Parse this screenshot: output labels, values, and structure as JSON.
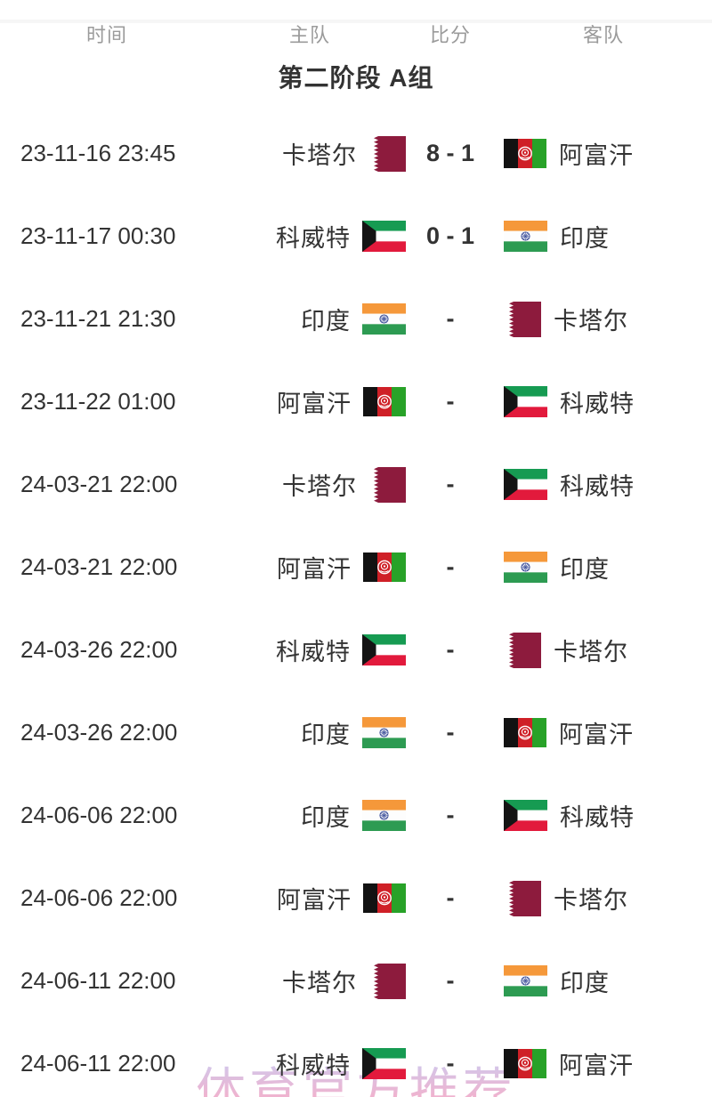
{
  "table": {
    "headers": {
      "time": "时间",
      "home": "主队",
      "score": "比分",
      "away": "客队"
    },
    "group_title": "第二阶段 A组",
    "matches": [
      {
        "time": "23-11-16 23:45",
        "home": {
          "name": "卡塔尔",
          "flag": "qatar"
        },
        "score": "8 - 1",
        "away": {
          "name": "阿富汗",
          "flag": "afghanistan"
        }
      },
      {
        "time": "23-11-17 00:30",
        "home": {
          "name": "科威特",
          "flag": "kuwait"
        },
        "score": "0 - 1",
        "away": {
          "name": "印度",
          "flag": "india"
        }
      },
      {
        "time": "23-11-21 21:30",
        "home": {
          "name": "印度",
          "flag": "india"
        },
        "score": "-",
        "away": {
          "name": "卡塔尔",
          "flag": "qatar"
        }
      },
      {
        "time": "23-11-22 01:00",
        "home": {
          "name": "阿富汗",
          "flag": "afghanistan"
        },
        "score": "-",
        "away": {
          "name": "科威特",
          "flag": "kuwait"
        }
      },
      {
        "time": "24-03-21 22:00",
        "home": {
          "name": "卡塔尔",
          "flag": "qatar"
        },
        "score": "-",
        "away": {
          "name": "科威特",
          "flag": "kuwait"
        }
      },
      {
        "time": "24-03-21 22:00",
        "home": {
          "name": "阿富汗",
          "flag": "afghanistan"
        },
        "score": "-",
        "away": {
          "name": "印度",
          "flag": "india"
        }
      },
      {
        "time": "24-03-26 22:00",
        "home": {
          "name": "科威特",
          "flag": "kuwait"
        },
        "score": "-",
        "away": {
          "name": "卡塔尔",
          "flag": "qatar"
        }
      },
      {
        "time": "24-03-26 22:00",
        "home": {
          "name": "印度",
          "flag": "india"
        },
        "score": "-",
        "away": {
          "name": "阿富汗",
          "flag": "afghanistan"
        }
      },
      {
        "time": "24-06-06 22:00",
        "home": {
          "name": "印度",
          "flag": "india"
        },
        "score": "-",
        "away": {
          "name": "科威特",
          "flag": "kuwait"
        }
      },
      {
        "time": "24-06-06 22:00",
        "home": {
          "name": "阿富汗",
          "flag": "afghanistan"
        },
        "score": "-",
        "away": {
          "name": "卡塔尔",
          "flag": "qatar"
        }
      },
      {
        "time": "24-06-11 22:00",
        "home": {
          "name": "卡塔尔",
          "flag": "qatar"
        },
        "score": "-",
        "away": {
          "name": "印度",
          "flag": "india"
        }
      },
      {
        "time": "24-06-11 22:00",
        "home": {
          "name": "科威特",
          "flag": "kuwait"
        },
        "score": "-",
        "away": {
          "name": "阿富汗",
          "flag": "afghanistan"
        }
      }
    ]
  },
  "watermark": {
    "text": "体育官方推荐",
    "color_top": "#c9c6ee",
    "color_bottom": "#f5a9c6"
  },
  "text_colors": {
    "header": "#9b9b9b",
    "body": "#333333"
  },
  "flags": {
    "qatar": {
      "maroon": "#8d1b3d",
      "white": "#ffffff"
    },
    "afghanistan": {
      "black": "#121212",
      "red": "#cf2027",
      "green": "#28a228",
      "emblem": "#ffffff"
    },
    "kuwait": {
      "green": "#169b52",
      "white": "#ffffff",
      "red": "#e21a3c",
      "black": "#141414"
    },
    "india": {
      "saffron": "#f5983a",
      "white": "#fdfdfd",
      "green": "#2d9b52",
      "navy": "#2b3f90"
    }
  }
}
